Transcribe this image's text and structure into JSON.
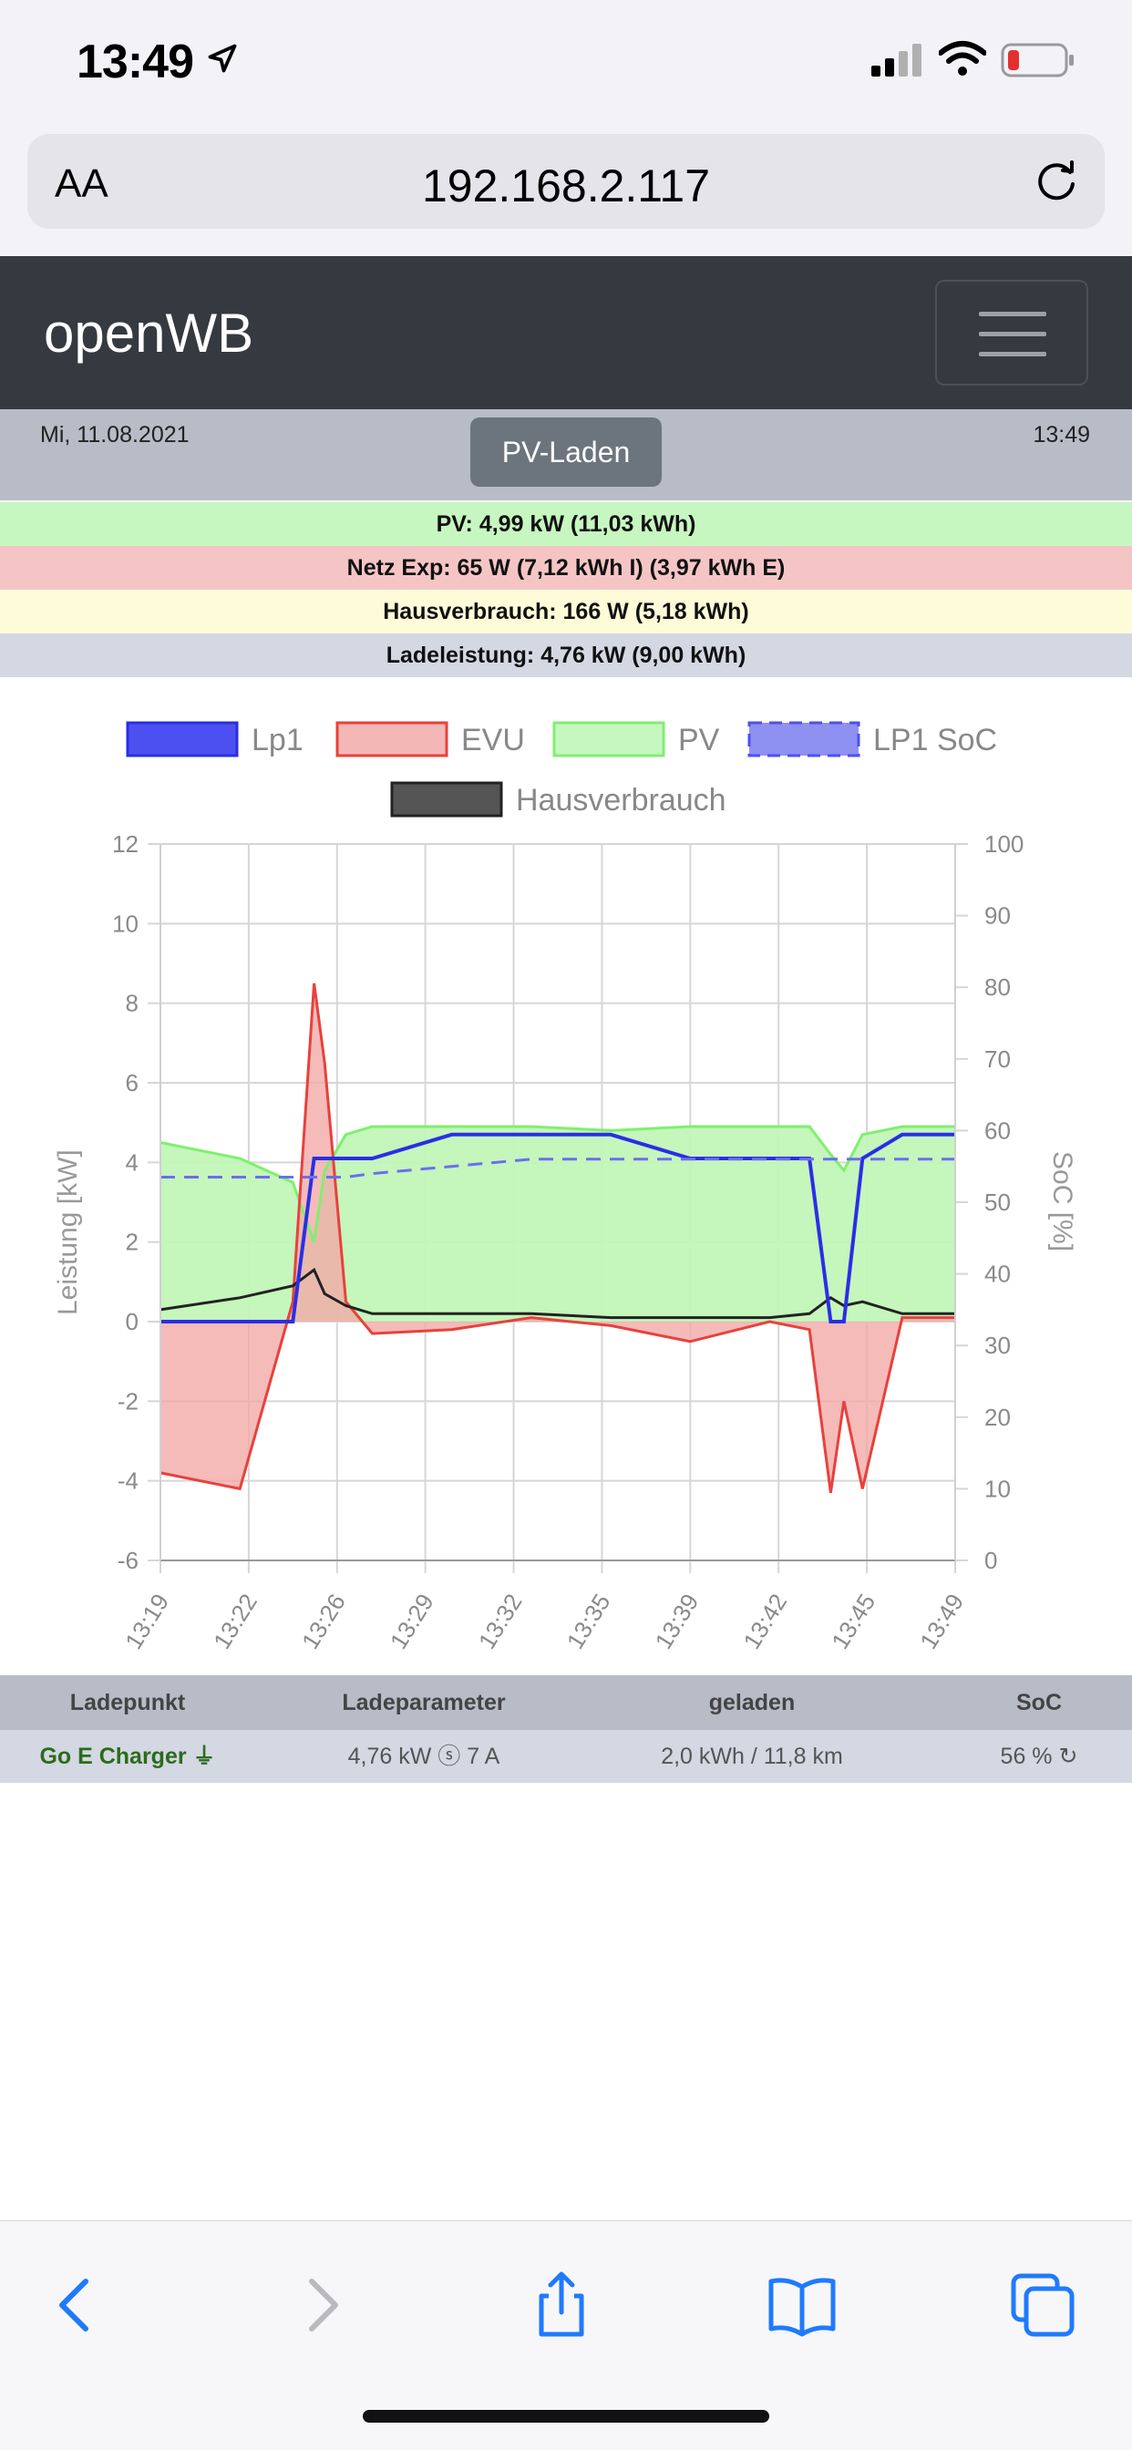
{
  "status_bar": {
    "time": "13:49",
    "icons": [
      "location-arrow-icon",
      "cellular-signal-icon",
      "wifi-icon",
      "battery-low-icon"
    ]
  },
  "browser": {
    "aa_label": "AA",
    "url": "192.168.2.117"
  },
  "app": {
    "brand": "openWB"
  },
  "header": {
    "date": "Mi, 11.08.2021",
    "time": "13:49",
    "mode": "PV-Laden"
  },
  "info_rows": {
    "pv": "PV: 4,99 kW (11,03 kWh)",
    "netz": "Netz Exp: 65 W (7,12 kWh I) (3,97 kWh E)",
    "haus": "Hausverbrauch: 166 W (5,18 kWh)",
    "lade": "Ladeleistung: 4,76 kW (9,00 kWh)"
  },
  "colors": {
    "lp1": "#2a2ee6",
    "evu": "#e8413c",
    "pv": "#80ef6f",
    "soc": "#6a6ef0",
    "haus": "#222222",
    "navbar": "#343a40"
  },
  "chart_data": {
    "type": "line",
    "legend": [
      "Lp1",
      "EVU",
      "PV",
      "LP1 SoC",
      "Hausverbrauch"
    ],
    "ylabel_left": "Leistung [kW]",
    "ylabel_right": "SoC [%]",
    "ylim_left": [
      -6,
      12
    ],
    "ylim_right": [
      0,
      100
    ],
    "yticks_left": [
      "12",
      "10",
      "8",
      "6",
      "4",
      "2",
      "0",
      "-2",
      "-4",
      "-6"
    ],
    "yticks_right": [
      "100",
      "90",
      "80",
      "70",
      "60",
      "50",
      "40",
      "30",
      "20",
      "10",
      "0"
    ],
    "xticks": [
      "13:19",
      "13:22",
      "13:26",
      "13:29",
      "13:32",
      "13:35",
      "13:39",
      "13:42",
      "13:45",
      "13:49"
    ],
    "grid": true,
    "x_minutes": [
      0,
      3,
      5,
      5.8,
      6.2,
      7,
      8,
      11,
      14,
      17,
      20,
      23,
      24.5,
      25.3,
      25.8,
      26.5,
      28,
      30
    ],
    "series": [
      {
        "name": "Lp1",
        "values": [
          0,
          0,
          0,
          4.1,
          4.1,
          4.1,
          4.1,
          4.7,
          4.7,
          4.7,
          4.1,
          4.1,
          4.1,
          0,
          0,
          4.1,
          4.7,
          4.7
        ]
      },
      {
        "name": "EVU",
        "values": [
          -3.8,
          -4.2,
          0.5,
          8.5,
          6.5,
          0.5,
          -0.3,
          -0.2,
          0.1,
          -0.1,
          -0.5,
          0,
          -0.2,
          -4.3,
          -2,
          -4.2,
          0.1,
          0.1
        ]
      },
      {
        "name": "PV",
        "values": [
          4.5,
          4.1,
          3.5,
          2.0,
          3.8,
          4.7,
          4.9,
          4.9,
          4.9,
          4.8,
          4.9,
          4.9,
          4.9,
          4.2,
          3.8,
          4.7,
          4.9,
          4.9
        ]
      },
      {
        "name": "LP1 SoC",
        "values": [
          53.5,
          53.5,
          53.5,
          53.5,
          53.5,
          53.5,
          54,
          55,
          56,
          56,
          56,
          56,
          56,
          56,
          56,
          56,
          56,
          56
        ]
      },
      {
        "name": "Hausverbrauch",
        "values": [
          0.3,
          0.6,
          0.9,
          1.3,
          0.7,
          0.4,
          0.2,
          0.2,
          0.2,
          0.1,
          0.1,
          0.1,
          0.2,
          0.6,
          0.4,
          0.5,
          0.2,
          0.2
        ]
      }
    ]
  },
  "table": {
    "headers": [
      "Ladepunkt",
      "Ladeparameter",
      "geladen",
      "SoC"
    ],
    "row": {
      "name": "Go E Charger",
      "params": "4,76 kW ⓢ 7 A",
      "charged": "2,0 kWh / 11,8 km",
      "soc": "56 %"
    }
  }
}
